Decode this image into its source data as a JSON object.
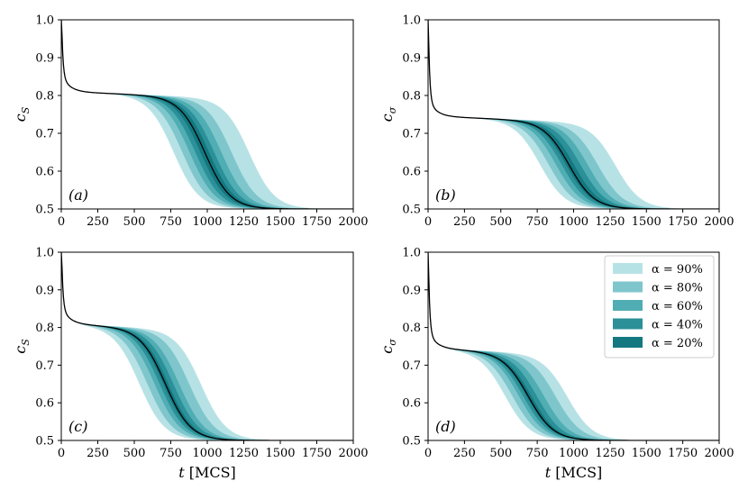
{
  "figure": {
    "x_axis_label_var": "t",
    "x_axis_label_unit": "[MCS]"
  },
  "legend": {
    "entries": [
      {
        "label": "α = 90%",
        "color": "#b7e2e5"
      },
      {
        "label": "α = 80%",
        "color": "#7fc6cc"
      },
      {
        "label": "α = 60%",
        "color": "#4fadb3"
      },
      {
        "label": "α = 40%",
        "color": "#2b9098"
      },
      {
        "label": "α = 20%",
        "color": "#137880"
      }
    ]
  },
  "chart_data": [
    {
      "type": "area",
      "panel_label": "(a)",
      "ylabel": "cS",
      "ylabel_var": "c",
      "ylabel_sub": "S",
      "xlim": [
        0,
        2000
      ],
      "ylim": [
        0.5,
        1.0
      ],
      "x_ticks": [
        "0",
        "250",
        "500",
        "750",
        "1000",
        "1250",
        "1500",
        "1750",
        "2000"
      ],
      "y_ticks": [
        "0.5",
        "0.6",
        "0.7",
        "0.8",
        "0.9",
        "1.0"
      ],
      "plateau_start": 0.81,
      "plateau_end": 0.79,
      "floor": 0.5,
      "median_midpoint_t": 985,
      "bands": [
        {
          "alpha": "90%",
          "t_mid_low": 770,
          "t_mid_high": 1290
        },
        {
          "alpha": "80%",
          "t_mid_low": 830,
          "t_mid_high": 1170
        },
        {
          "alpha": "60%",
          "t_mid_low": 880,
          "t_mid_high": 1100
        },
        {
          "alpha": "40%",
          "t_mid_low": 920,
          "t_mid_high": 1050
        },
        {
          "alpha": "20%",
          "t_mid_low": 955,
          "t_mid_high": 1015
        }
      ]
    },
    {
      "type": "area",
      "panel_label": "(b)",
      "ylabel": "cσ",
      "ylabel_var": "c",
      "ylabel_sub": "σ",
      "xlim": [
        0,
        2000
      ],
      "ylim": [
        0.5,
        1.0
      ],
      "x_ticks": [
        "0",
        "250",
        "500",
        "750",
        "1000",
        "1250",
        "1500",
        "1750",
        "2000"
      ],
      "y_ticks": [
        "0.5",
        "0.6",
        "0.7",
        "0.8",
        "0.9",
        "1.0"
      ],
      "plateau_start": 0.745,
      "plateau_end": 0.725,
      "floor": 0.5,
      "median_midpoint_t": 970,
      "bands": [
        {
          "alpha": "90%",
          "t_mid_low": 770,
          "t_mid_high": 1290
        },
        {
          "alpha": "80%",
          "t_mid_low": 830,
          "t_mid_high": 1170
        },
        {
          "alpha": "60%",
          "t_mid_low": 880,
          "t_mid_high": 1100
        },
        {
          "alpha": "40%",
          "t_mid_low": 920,
          "t_mid_high": 1050
        },
        {
          "alpha": "20%",
          "t_mid_low": 950,
          "t_mid_high": 1005
        }
      ]
    },
    {
      "type": "area",
      "panel_label": "(c)",
      "ylabel": "cS",
      "ylabel_var": "c",
      "ylabel_sub": "S",
      "xlim": [
        0,
        2000
      ],
      "ylim": [
        0.5,
        1.0
      ],
      "x_ticks": [
        "0",
        "250",
        "500",
        "750",
        "1000",
        "1250",
        "1500",
        "1750",
        "2000"
      ],
      "y_ticks": [
        "0.5",
        "0.6",
        "0.7",
        "0.8",
        "0.9",
        "1.0"
      ],
      "plateau_start": 0.81,
      "plateau_end": 0.785,
      "floor": 0.5,
      "median_midpoint_t": 715,
      "bands": [
        {
          "alpha": "90%",
          "t_mid_low": 535,
          "t_mid_high": 960
        },
        {
          "alpha": "80%",
          "t_mid_low": 590,
          "t_mid_high": 880
        },
        {
          "alpha": "60%",
          "t_mid_low": 640,
          "t_mid_high": 810
        },
        {
          "alpha": "40%",
          "t_mid_low": 675,
          "t_mid_high": 770
        },
        {
          "alpha": "20%",
          "t_mid_low": 700,
          "t_mid_high": 735
        }
      ]
    },
    {
      "type": "area",
      "panel_label": "(d)",
      "ylabel": "cσ",
      "ylabel_var": "c",
      "ylabel_sub": "σ",
      "xlim": [
        0,
        2000
      ],
      "ylim": [
        0.5,
        1.0
      ],
      "x_ticks": [
        "0",
        "250",
        "500",
        "750",
        "1000",
        "1250",
        "1500",
        "1750",
        "2000"
      ],
      "y_ticks": [
        "0.5",
        "0.6",
        "0.7",
        "0.8",
        "0.9",
        "1.0"
      ],
      "plateau_start": 0.745,
      "plateau_end": 0.72,
      "floor": 0.5,
      "median_midpoint_t": 690,
      "bands": [
        {
          "alpha": "90%",
          "t_mid_low": 530,
          "t_mid_high": 960
        },
        {
          "alpha": "80%",
          "t_mid_low": 580,
          "t_mid_high": 880
        },
        {
          "alpha": "60%",
          "t_mid_low": 625,
          "t_mid_high": 800
        },
        {
          "alpha": "40%",
          "t_mid_low": 655,
          "t_mid_high": 750
        },
        {
          "alpha": "20%",
          "t_mid_low": 678,
          "t_mid_high": 712
        }
      ]
    }
  ]
}
